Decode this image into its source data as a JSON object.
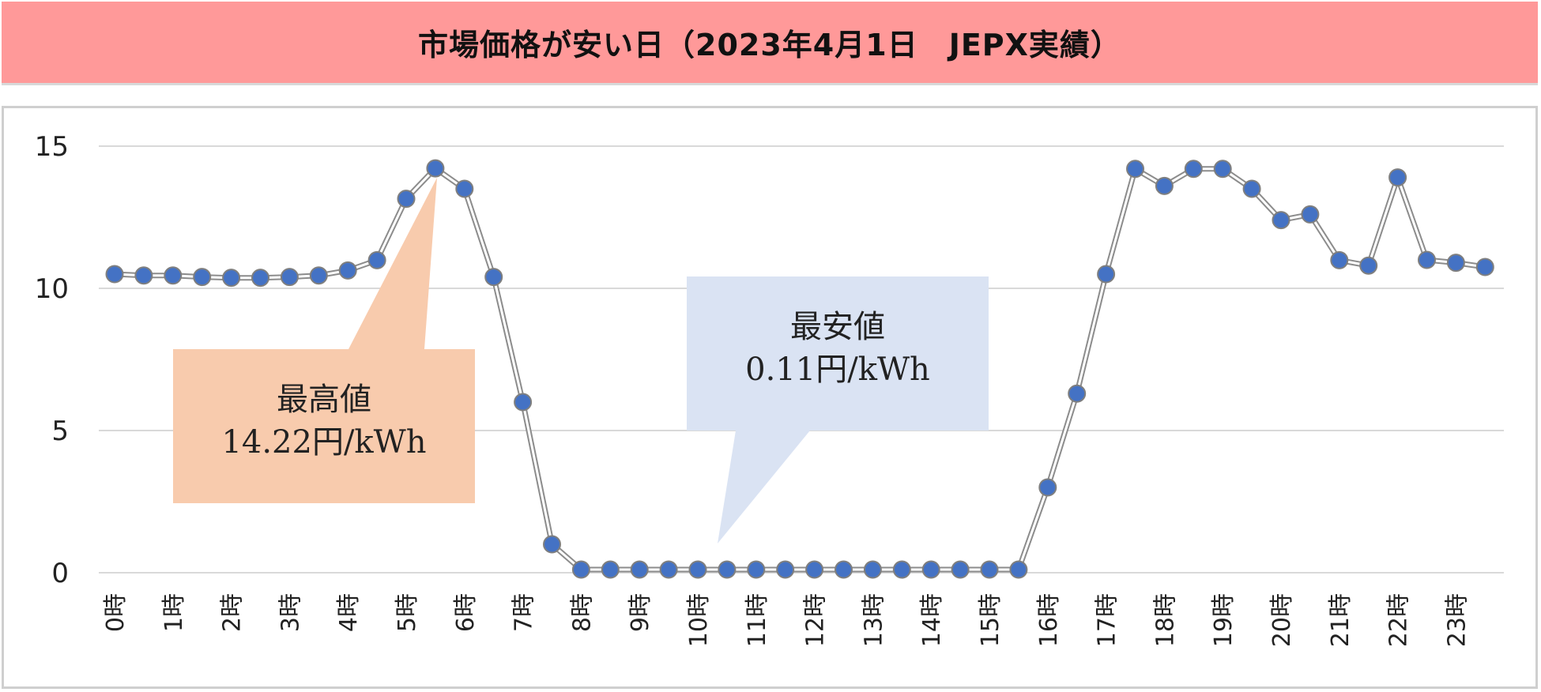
{
  "header": {
    "title": "市場価格が安い日（2023年4月1日　JEPX実績）"
  },
  "colors": {
    "title_background": "#ff9999",
    "line": "#b3b3b3",
    "marker": "#4472c4",
    "marker_edge": "#7f7f7f",
    "callout_max": "#f8cbad",
    "callout_min": "#dae3f3",
    "grid": "#d9d9d9"
  },
  "chart_data": {
    "type": "line",
    "title": "市場価格が安い日（2023年4月1日　JEPX実績）",
    "xlabel": "",
    "ylabel": "",
    "ylim": [
      0,
      15
    ],
    "yticks": [
      0,
      5,
      10,
      15
    ],
    "grid": true,
    "legend": "none",
    "x_tick_labels": [
      "0時",
      "1時",
      "2時",
      "3時",
      "4時",
      "5時",
      "6時",
      "7時",
      "8時",
      "9時",
      "10時",
      "11時",
      "12時",
      "13時",
      "14時",
      "15時",
      "16時",
      "17時",
      "18時",
      "19時",
      "20時",
      "21時",
      "22時",
      "23時"
    ],
    "x": [
      0,
      0.5,
      1,
      1.5,
      2,
      2.5,
      3,
      3.5,
      4,
      4.5,
      5,
      5.5,
      6,
      6.5,
      7,
      7.5,
      8,
      8.5,
      9,
      9.5,
      10,
      10.5,
      11,
      11.5,
      12,
      12.5,
      13,
      13.5,
      14,
      14.5,
      15,
      15.5,
      16,
      16.5,
      17,
      17.5,
      18,
      18.5,
      19,
      19.5,
      20,
      20.5,
      21,
      21.5,
      22,
      22.5,
      23,
      23.5
    ],
    "series": [
      {
        "values": [
          10.5,
          10.45,
          10.45,
          10.4,
          10.37,
          10.37,
          10.4,
          10.45,
          10.63,
          10.99,
          13.15,
          14.22,
          13.5,
          10.4,
          6.0,
          1.0,
          0.11,
          0.11,
          0.11,
          0.11,
          0.11,
          0.11,
          0.11,
          0.11,
          0.11,
          0.11,
          0.11,
          0.11,
          0.11,
          0.11,
          0.11,
          0.11,
          3.0,
          6.3,
          10.5,
          14.2,
          13.6,
          14.2,
          14.2,
          13.5,
          12.4,
          12.6,
          10.99,
          10.8,
          13.9,
          11.0,
          10.9,
          10.75
        ]
      }
    ],
    "annotations": [
      {
        "id": "max",
        "title": "最高値",
        "value": "14.22円/kWh",
        "x": 5.5,
        "y": 14.22
      },
      {
        "id": "min",
        "title": "最安値",
        "value": "0.11円/kWh",
        "x": 10.5,
        "y": 0.11
      }
    ]
  }
}
